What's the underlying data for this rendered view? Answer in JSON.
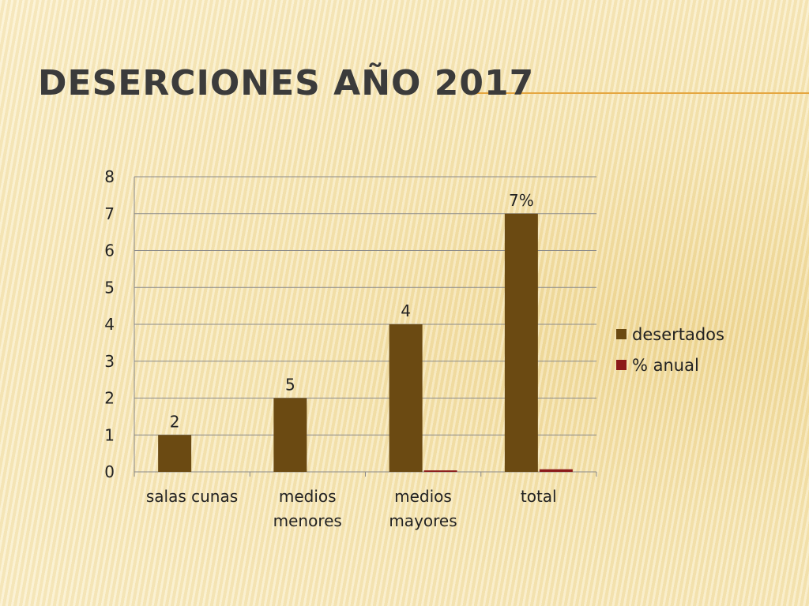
{
  "chart_data": {
    "type": "bar",
    "title": "DESERCIONES AÑO 2017",
    "categories": [
      "salas cunas",
      "medios\nmenores",
      "medios\nmayores",
      "total"
    ],
    "series": [
      {
        "name": "desertados",
        "color": "#6b4a12",
        "values": [
          1,
          2,
          4,
          7
        ]
      },
      {
        "name": "% anual",
        "color": "#8b1a1a",
        "values": [
          0,
          0,
          0.04,
          0.07
        ]
      }
    ],
    "annotations": [
      "2",
      "5",
      "4",
      "7%"
    ],
    "ylim": [
      0,
      8
    ],
    "yticks": [
      0,
      1,
      2,
      3,
      4,
      5,
      6,
      7,
      8
    ],
    "grid": true,
    "legend": "right"
  }
}
